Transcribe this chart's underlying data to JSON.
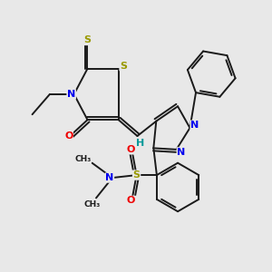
{
  "background_color": "#e8e8e8",
  "bond_color": "#1a1a1a",
  "atom_colors": {
    "S": "#999900",
    "N": "#0000ee",
    "O": "#ee0000",
    "H": "#009999"
  },
  "figsize": [
    3.0,
    3.0
  ],
  "dpi": 100,
  "lw": 1.4,
  "fontsize": 7.5
}
